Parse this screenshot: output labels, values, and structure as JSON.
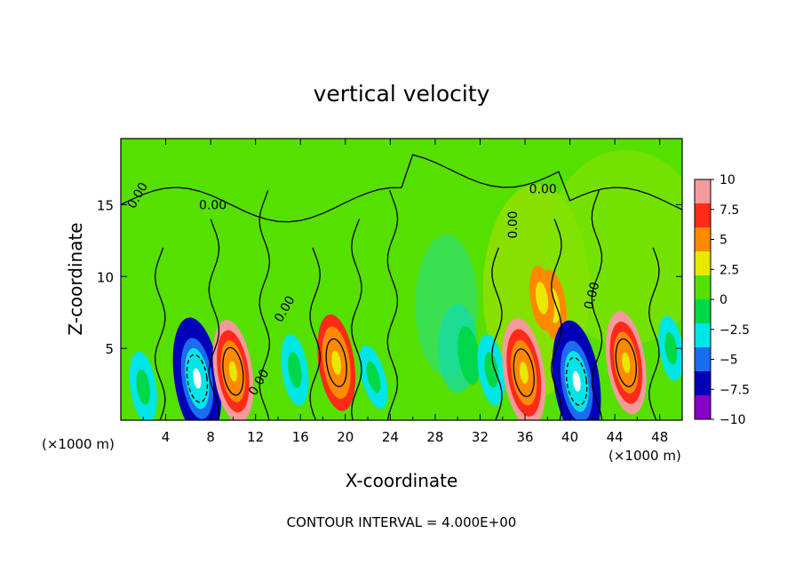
{
  "chart_data": {
    "type": "heatmap",
    "title": "vertical velocity",
    "xlabel": "X-coordinate",
    "ylabel": "Z-coordinate",
    "x_unit_left": "(×1000 m)",
    "x_unit_right": "(×1000 m)",
    "xlim": [
      0,
      50
    ],
    "ylim": [
      0,
      19.6
    ],
    "x_ticks": [
      "4",
      "8",
      "12",
      "16",
      "20",
      "24",
      "28",
      "32",
      "36",
      "40",
      "44",
      "48"
    ],
    "y_ticks": [
      "5",
      "10",
      "15"
    ],
    "colorbar": {
      "range": [
        -10,
        10
      ],
      "tick_labels": [
        "10",
        "7.5",
        "5",
        "2.5",
        "0",
        "−2.5",
        "−5",
        "−7.5",
        "−10"
      ],
      "colors": [
        "#f59a9a",
        "#ff2a1a",
        "#ff8a00",
        "#e8e800",
        "#55e000",
        "#00d84a",
        "#00e6e6",
        "#1a6cf0",
        "#0000b8",
        "#8800c8"
      ]
    },
    "contour_labels": [
      "0.00",
      "0.00",
      "0.00",
      "0.00",
      "0.00",
      "0.00",
      "0.00"
    ],
    "footnote": "CONTOUR INTERVAL = 4.000E+00",
    "features": [
      {
        "x": 6.8,
        "z": 2.9,
        "value": -12
      },
      {
        "x": 10.0,
        "z": 3.4,
        "value": 9
      },
      {
        "x": 15.5,
        "z": 3.5,
        "value": -4
      },
      {
        "x": 19.2,
        "z": 4.0,
        "value": 8
      },
      {
        "x": 22.5,
        "z": 3.0,
        "value": -3
      },
      {
        "x": 31.0,
        "z": 4.5,
        "value": -2
      },
      {
        "x": 33.0,
        "z": 3.5,
        "value": -4
      },
      {
        "x": 35.9,
        "z": 3.3,
        "value": 10
      },
      {
        "x": 38.5,
        "z": 8.0,
        "value": 4
      },
      {
        "x": 40.6,
        "z": 2.7,
        "value": -12
      },
      {
        "x": 45.0,
        "z": 4.0,
        "value": 9
      },
      {
        "x": 49.0,
        "z": 5.0,
        "value": -3
      },
      {
        "x": 2.0,
        "z": 2.3,
        "value": -4
      },
      {
        "x": 37.5,
        "z": 8.5,
        "value": 3
      }
    ]
  }
}
